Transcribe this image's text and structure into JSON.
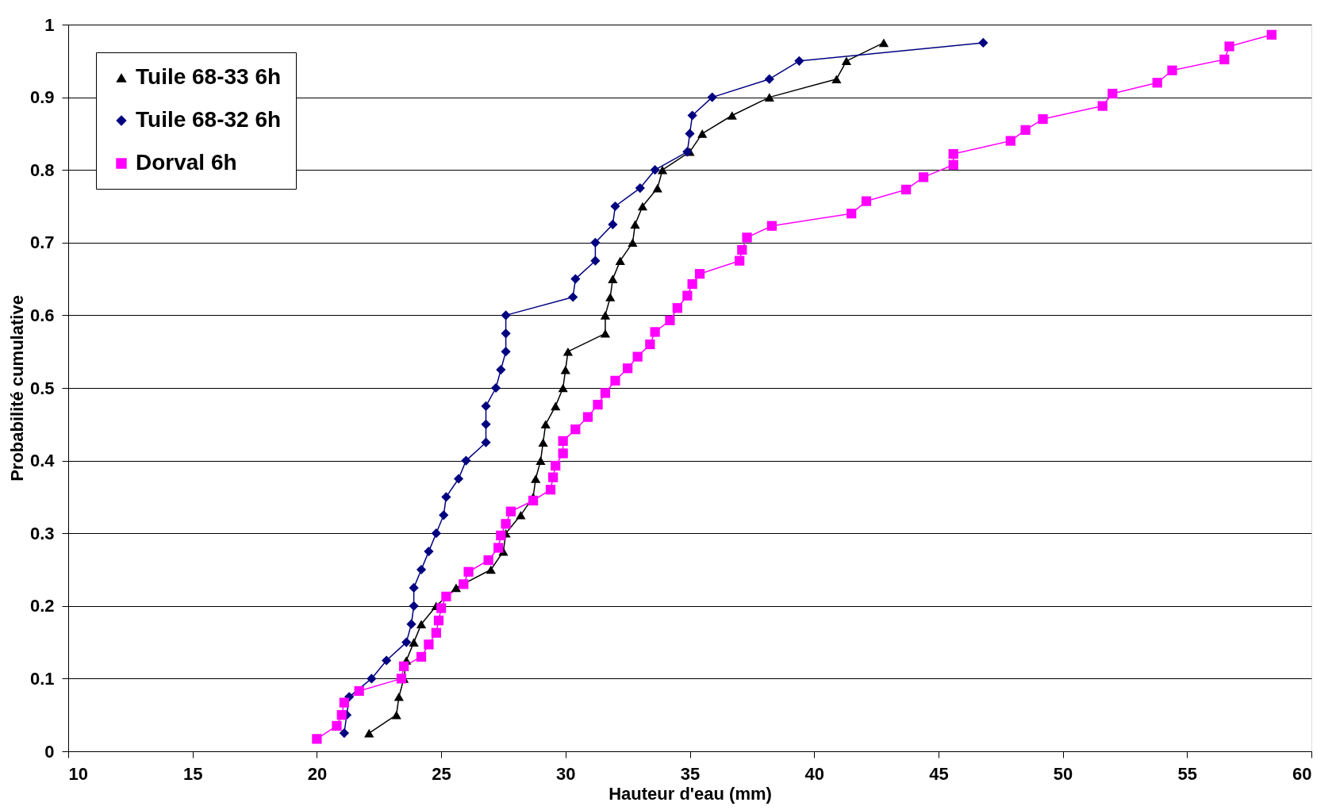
{
  "chart_data": {
    "type": "line",
    "xlabel": "Hauteur d'eau (mm)",
    "ylabel": "Probabilité cumulative",
    "xlim": [
      10,
      60
    ],
    "xticks": [
      10,
      15,
      20,
      25,
      30,
      35,
      40,
      45,
      50,
      55,
      60
    ],
    "ylim": [
      0,
      1
    ],
    "yticks": [
      0,
      0.1,
      0.2,
      0.3,
      0.4,
      0.5,
      0.6,
      0.7,
      0.8,
      0.9,
      1
    ],
    "grid": "y",
    "legend": "top left",
    "line_style": "solid",
    "series": [
      {
        "name": "Tuile 68-33 6h",
        "color": "#000000",
        "marker": "triangle",
        "x": [
          22.1,
          23.2,
          23.3,
          23.5,
          23.6,
          23.9,
          24.2,
          24.8,
          25.6,
          27.0,
          27.5,
          27.6,
          28.2,
          28.7,
          28.8,
          29.0,
          29.1,
          29.2,
          29.6,
          29.9,
          30.0,
          30.1,
          31.6,
          31.6,
          31.8,
          31.9,
          32.2,
          32.7,
          32.8,
          33.1,
          33.7,
          33.9,
          35.0,
          35.5,
          36.7,
          38.2,
          40.9,
          41.3,
          42.8
        ],
        "values": [
          0.025,
          0.05,
          0.075,
          0.1,
          0.125,
          0.15,
          0.175,
          0.2,
          0.225,
          0.25,
          0.275,
          0.3,
          0.325,
          0.35,
          0.375,
          0.4,
          0.425,
          0.45,
          0.475,
          0.5,
          0.525,
          0.55,
          0.575,
          0.6,
          0.625,
          0.65,
          0.675,
          0.7,
          0.725,
          0.75,
          0.775,
          0.8,
          0.825,
          0.85,
          0.875,
          0.9,
          0.925,
          0.95,
          0.975
        ]
      },
      {
        "name": "Tuile 68-32 6h",
        "color": "#000080",
        "marker": "diamond",
        "x": [
          21.1,
          21.2,
          21.3,
          22.2,
          22.8,
          23.6,
          23.8,
          23.9,
          23.9,
          24.2,
          24.5,
          24.8,
          25.1,
          25.2,
          25.7,
          26.0,
          26.8,
          26.8,
          26.8,
          27.2,
          27.4,
          27.6,
          27.6,
          27.6,
          30.3,
          30.4,
          31.2,
          31.2,
          31.9,
          32.0,
          33.0,
          33.6,
          34.9,
          35.0,
          35.1,
          35.9,
          38.2,
          39.4,
          46.8
        ],
        "values": [
          0.025,
          0.05,
          0.075,
          0.1,
          0.125,
          0.15,
          0.175,
          0.2,
          0.225,
          0.25,
          0.275,
          0.3,
          0.325,
          0.35,
          0.375,
          0.4,
          0.425,
          0.45,
          0.475,
          0.5,
          0.525,
          0.55,
          0.575,
          0.6,
          0.625,
          0.65,
          0.675,
          0.7,
          0.725,
          0.75,
          0.775,
          0.8,
          0.825,
          0.85,
          0.875,
          0.9,
          0.925,
          0.95,
          0.975
        ]
      },
      {
        "name": "Dorval 6h",
        "color": "#ff00ff",
        "marker": "square",
        "x": [
          20.0,
          20.8,
          21.0,
          21.1,
          21.7,
          23.4,
          23.5,
          24.2,
          24.5,
          24.8,
          24.9,
          25.0,
          25.2,
          25.9,
          26.1,
          26.9,
          27.3,
          27.4,
          27.6,
          27.8,
          28.7,
          29.4,
          29.5,
          29.6,
          29.9,
          29.9,
          30.4,
          30.9,
          31.3,
          31.6,
          32.0,
          32.5,
          32.9,
          33.4,
          33.6,
          34.2,
          34.5,
          34.9,
          35.1,
          35.4,
          37.0,
          37.1,
          37.3,
          38.3,
          41.5,
          42.1,
          43.7,
          44.4,
          45.6,
          45.6,
          47.9,
          48.5,
          49.2,
          51.6,
          52.0,
          53.8,
          54.4,
          56.5,
          56.7,
          58.4
        ],
        "values": [
          0.017,
          0.035,
          0.05,
          0.067,
          0.083,
          0.1,
          0.117,
          0.13,
          0.147,
          0.163,
          0.18,
          0.197,
          0.213,
          0.23,
          0.247,
          0.263,
          0.28,
          0.297,
          0.313,
          0.33,
          0.345,
          0.36,
          0.377,
          0.393,
          0.41,
          0.427,
          0.443,
          0.46,
          0.477,
          0.493,
          0.51,
          0.527,
          0.543,
          0.56,
          0.577,
          0.593,
          0.61,
          0.627,
          0.643,
          0.657,
          0.675,
          0.69,
          0.707,
          0.723,
          0.74,
          0.757,
          0.773,
          0.79,
          0.807,
          0.822,
          0.84,
          0.855,
          0.87,
          0.888,
          0.905,
          0.92,
          0.937,
          0.952,
          0.97,
          0.986
        ]
      }
    ]
  }
}
